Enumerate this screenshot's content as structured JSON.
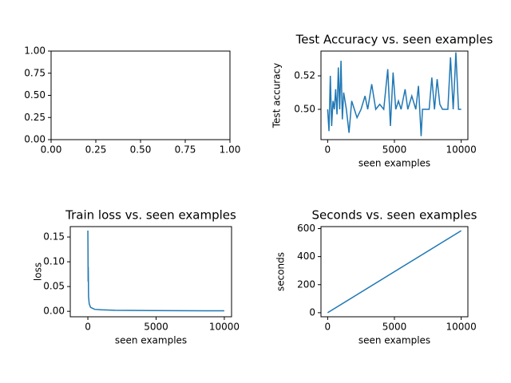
{
  "chart_data": [
    {
      "type": "line",
      "xlim": [
        0,
        1
      ],
      "ylim": [
        0,
        1
      ],
      "xticks": [
        {
          "value": 0,
          "label": "0.00"
        },
        {
          "value": 0.25,
          "label": "0.25"
        },
        {
          "value": 0.5,
          "label": "0.50"
        },
        {
          "value": 0.75,
          "label": "0.75"
        },
        {
          "value": 1,
          "label": "1.00"
        }
      ],
      "yticks": [
        {
          "value": 0,
          "label": "0.00"
        },
        {
          "value": 0.25,
          "label": "0.25"
        },
        {
          "value": 0.5,
          "label": "0.50"
        },
        {
          "value": 0.75,
          "label": "0.75"
        },
        {
          "value": 1,
          "label": "1.00"
        }
      ]
    },
    {
      "type": "line",
      "title": "Test Accuracy vs. seen examples",
      "xlabel": "seen examples",
      "ylabel": "Test accuracy",
      "xlim": [
        -500,
        10500
      ],
      "ylim": [
        0.4819,
        0.5348
      ],
      "xticks": [
        0,
        5000,
        10000
      ],
      "yticks": [
        {
          "value": 0.5,
          "label": "0.50"
        },
        {
          "value": 0.52,
          "label": "0.52"
        }
      ],
      "x": [
        0,
        100,
        200,
        300,
        400,
        500,
        600,
        700,
        800,
        900,
        1000,
        1100,
        1200,
        1400,
        1600,
        1800,
        2000,
        2200,
        2500,
        2800,
        3000,
        3300,
        3600,
        3900,
        4200,
        4500,
        4700,
        4900,
        5100,
        5300,
        5500,
        5800,
        6000,
        6300,
        6600,
        6800,
        7000,
        7100,
        7300,
        7600,
        7800,
        8000,
        8200,
        8400,
        8600,
        8800,
        9000,
        9200,
        9400,
        9500,
        9600,
        9800,
        10000
      ],
      "series": [
        {
          "color": "#1f77b4",
          "values": [
            0.5,
            0.487,
            0.52,
            0.49,
            0.505,
            0.5,
            0.512,
            0.497,
            0.525,
            0.5,
            0.529,
            0.494,
            0.51,
            0.5,
            0.486,
            0.505,
            0.5,
            0.495,
            0.5,
            0.508,
            0.5,
            0.515,
            0.5,
            0.503,
            0.5,
            0.524,
            0.49,
            0.522,
            0.5,
            0.505,
            0.5,
            0.512,
            0.5,
            0.508,
            0.5,
            0.514,
            0.484,
            0.5,
            0.5,
            0.5,
            0.519,
            0.5,
            0.518,
            0.503,
            0.5,
            0.5,
            0.5,
            0.531,
            0.5,
            0.516,
            0.534,
            0.5,
            0.5
          ]
        }
      ]
    },
    {
      "type": "line",
      "title": "Train loss vs. seen examples",
      "xlabel": "seen examples",
      "ylabel": "loss",
      "xlim": [
        -1290,
        10530
      ],
      "ylim": [
        -0.011,
        0.171
      ],
      "xticks": [
        0,
        5000,
        10000
      ],
      "yticks": [
        {
          "value": 0,
          "label": "0.00"
        },
        {
          "value": 0.05,
          "label": "0.05"
        },
        {
          "value": 0.1,
          "label": "0.10"
        },
        {
          "value": 0.15,
          "label": "0.15"
        }
      ],
      "x": [
        0,
        10,
        20,
        30,
        50,
        100,
        200,
        500,
        1000,
        2000,
        5000,
        10000
      ],
      "series": [
        {
          "color": "#1f77b4",
          "values": [
            0.163,
            0.12,
            0.06,
            0.09,
            0.03,
            0.015,
            0.008,
            0.004,
            0.003,
            0.002,
            0.0015,
            0.001
          ]
        }
      ]
    },
    {
      "type": "line",
      "title": "Seconds vs. seen examples",
      "xlabel": "seen examples",
      "ylabel": "seconds",
      "xlim": [
        -500,
        10500
      ],
      "ylim": [
        -29,
        614
      ],
      "xticks": [
        0,
        5000,
        10000
      ],
      "yticks": [
        0,
        200,
        400,
        600
      ],
      "x": [
        0,
        10000
      ],
      "series": [
        {
          "color": "#1f77b4",
          "values": [
            0,
            585
          ]
        }
      ]
    }
  ]
}
